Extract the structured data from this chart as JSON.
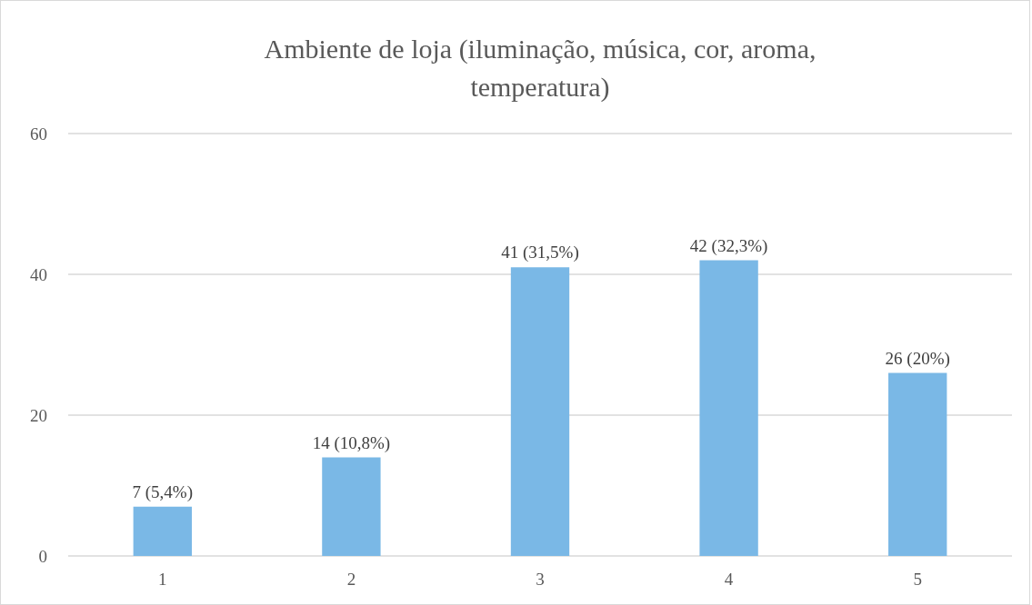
{
  "chart_data": {
    "type": "bar",
    "title": "Ambiente de loja (iluminação, música, cor, aroma, temperatura)",
    "categories": [
      "1",
      "2",
      "3",
      "4",
      "5"
    ],
    "values": [
      7,
      14,
      41,
      42,
      26
    ],
    "value_labels": [
      "7 (5,4%)",
      "14 (10,8%)",
      "41 (31,5%)",
      "42 (32,3%)",
      "26 (20%)"
    ],
    "color": "#7ab8e6",
    "ylim": [
      0,
      60
    ],
    "yticks": [
      0,
      20,
      40,
      60
    ],
    "grid": "y"
  }
}
